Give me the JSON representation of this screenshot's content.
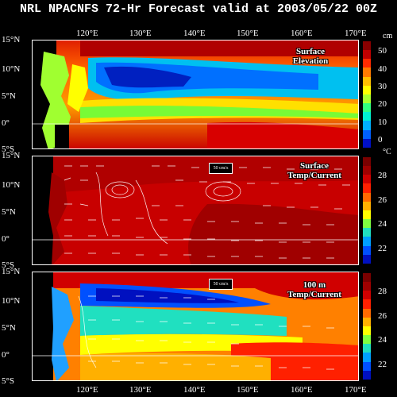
{
  "title": "NRL NPACNFS 72-Hr Forecast valid at 2003/05/22 00Z",
  "lon_labels": [
    "120°E",
    "130°E",
    "140°E",
    "150°E",
    "160°E",
    "170°E"
  ],
  "panels": [
    {
      "id": "elevation",
      "title_line1": "Surface",
      "title_line2": "Elevation",
      "lat_labels": [
        "15°N",
        "10°N",
        "5°N",
        "0°",
        "5°S"
      ],
      "colorbar_unit": "cm",
      "colorbar_labels": [
        "50",
        "40",
        "30",
        "20",
        "10",
        "0"
      ],
      "colorbar_colors": [
        "#8a0000",
        "#c00000",
        "#ff2a00",
        "#ff7a00",
        "#ffc000",
        "#ffff00",
        "#a8ff30",
        "#30ff80",
        "#00f0d0",
        "#00b0ff",
        "#0060ff",
        "#0010c8"
      ]
    },
    {
      "id": "surface-temp",
      "title_line1": "Surface",
      "title_line2": "Temp/Current",
      "scale_label": "50 cm/s",
      "lat_labels": [
        "15°N",
        "10°N",
        "5°N",
        "0°",
        "5°S"
      ],
      "colorbar_unit": "°C",
      "colorbar_labels": [
        "28",
        "26",
        "24",
        "22"
      ],
      "colorbar_colors": [
        "#7a0000",
        "#a00000",
        "#d00000",
        "#ff2000",
        "#ff6a00",
        "#ffb000",
        "#ffff00",
        "#80ff40",
        "#20e0c0",
        "#00a0ff",
        "#0050ff",
        "#0010c0"
      ]
    },
    {
      "id": "temp-100m",
      "title_line1": "100 m",
      "title_line2": "Temp/Current",
      "scale_label": "50 cm/s",
      "lat_labels": [
        "15°N",
        "10°N",
        "5°N",
        "0°",
        "5°S"
      ],
      "colorbar_unit": "",
      "colorbar_labels": [
        "28",
        "26",
        "24",
        "22"
      ],
      "colorbar_colors": [
        "#7a0000",
        "#a00000",
        "#d00000",
        "#ff2000",
        "#ff6a00",
        "#ffb000",
        "#ffff00",
        "#80ff40",
        "#20e0c0",
        "#00a0ff",
        "#0050ff",
        "#0010c0"
      ]
    }
  ]
}
